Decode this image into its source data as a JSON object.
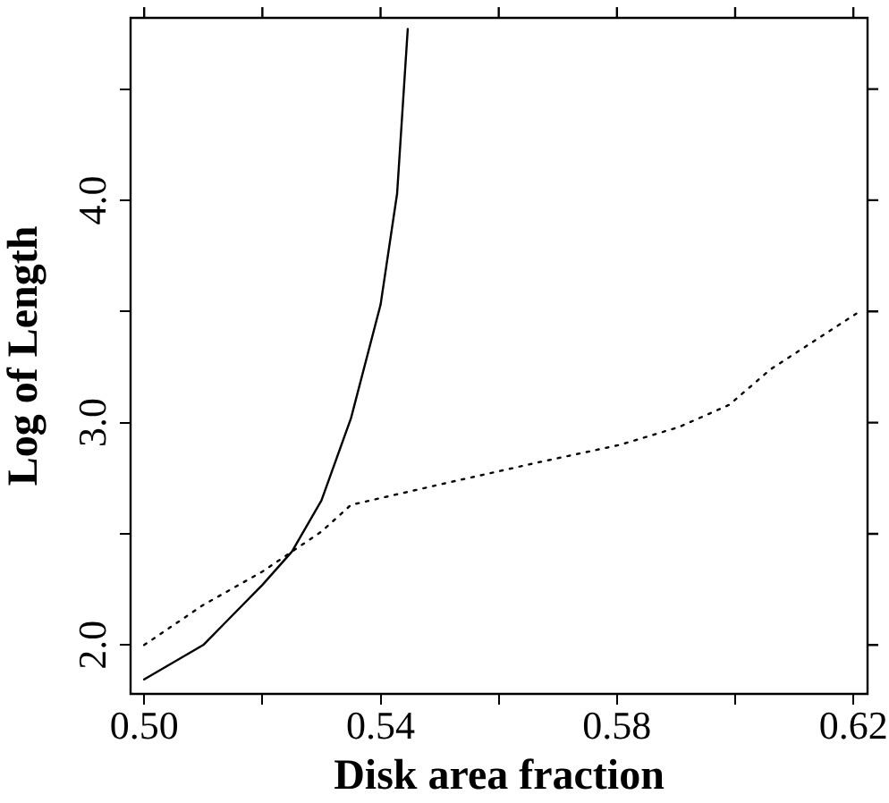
{
  "chart_data": {
    "type": "line",
    "xlabel": "Disk area fraction",
    "ylabel": "Log of Length",
    "xlim": [
      0.4977,
      0.6224
    ],
    "ylim": [
      1.78,
      4.82
    ],
    "xticks": [
      {
        "value": 0.5,
        "label": "0.50"
      },
      {
        "value": 0.52,
        "label": null
      },
      {
        "value": 0.54,
        "label": "0.54"
      },
      {
        "value": 0.56,
        "label": null
      },
      {
        "value": 0.58,
        "label": "0.58"
      },
      {
        "value": 0.6,
        "label": null
      },
      {
        "value": 0.62,
        "label": "0.62"
      }
    ],
    "yticks": [
      {
        "value": 2,
        "label": "2.0"
      },
      {
        "value": 2.5,
        "label": null
      },
      {
        "value": 3,
        "label": "3.0"
      },
      {
        "value": 3.5,
        "label": null
      },
      {
        "value": 4,
        "label": "4.0"
      },
      {
        "value": 4.5,
        "label": null
      }
    ],
    "grid": false,
    "legend": false,
    "marker": "none",
    "series": [
      {
        "color": "#000000",
        "line_style": "solid",
        "x": [
          0.5,
          0.51,
          0.52,
          0.525,
          0.53,
          0.535,
          0.54,
          0.5428,
          0.5446
        ],
        "values": [
          1.845,
          2.0,
          2.27,
          2.42,
          2.65,
          3.02,
          3.53,
          4.03,
          4.77
        ]
      },
      {
        "color": "#000000",
        "line_style": "dotted",
        "x": [
          0.5,
          0.51,
          0.52,
          0.525,
          0.53,
          0.535,
          0.5514,
          0.5665,
          0.5805,
          0.5905,
          0.599,
          0.606,
          0.6205
        ],
        "values": [
          2.0,
          2.18,
          2.33,
          2.42,
          2.51,
          2.63,
          2.73,
          2.82,
          2.9,
          2.98,
          3.08,
          3.24,
          3.49
        ]
      }
    ]
  }
}
